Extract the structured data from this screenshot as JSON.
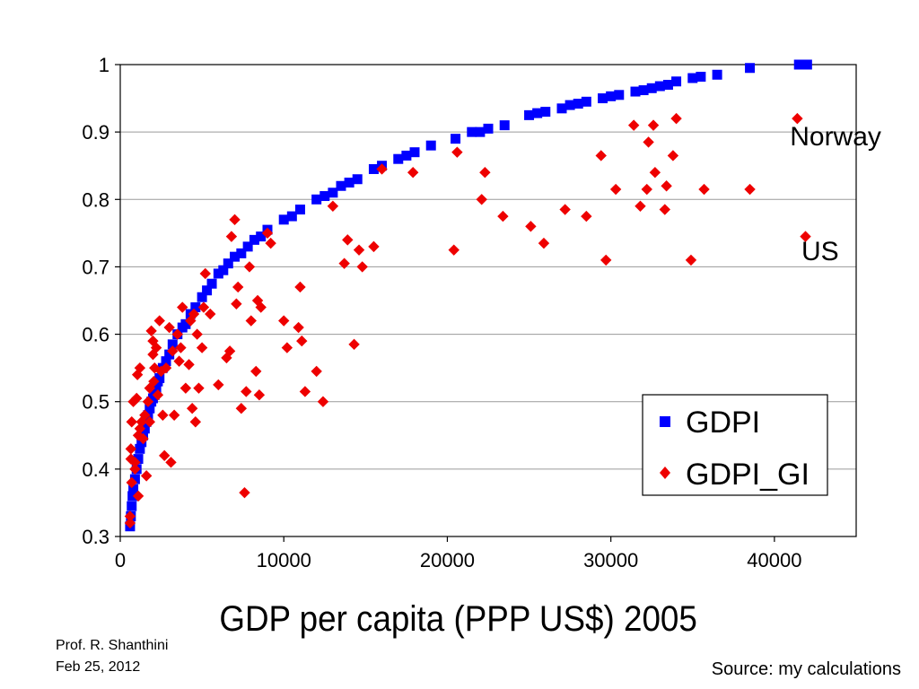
{
  "chart_data": {
    "type": "scatter",
    "title": "",
    "xlabel": "GDP per capita (PPP US$) 2005",
    "ylabel": "",
    "xlim": [
      0,
      45000
    ],
    "ylim": [
      0.3,
      1.0
    ],
    "x_ticks": [
      "0",
      "10000",
      "20000",
      "30000",
      "40000"
    ],
    "y_ticks": [
      "0.3",
      "0.4",
      "0.5",
      "0.6",
      "0.7",
      "0.8",
      "0.9",
      "1"
    ],
    "grid": "horizontal",
    "legend_position": "bottom-right",
    "series": [
      {
        "name": "GDPI",
        "color": "#0000ff",
        "marker": "square",
        "points": [
          [
            600,
            0.315
          ],
          [
            650,
            0.33
          ],
          [
            700,
            0.345
          ],
          [
            750,
            0.36
          ],
          [
            800,
            0.37
          ],
          [
            900,
            0.385
          ],
          [
            1000,
            0.4
          ],
          [
            1100,
            0.415
          ],
          [
            1200,
            0.43
          ],
          [
            1300,
            0.44
          ],
          [
            1400,
            0.45
          ],
          [
            1500,
            0.46
          ],
          [
            1600,
            0.47
          ],
          [
            1700,
            0.48
          ],
          [
            1800,
            0.49
          ],
          [
            1900,
            0.5
          ],
          [
            2000,
            0.505
          ],
          [
            2100,
            0.51
          ],
          [
            2200,
            0.52
          ],
          [
            2300,
            0.53
          ],
          [
            2400,
            0.535
          ],
          [
            2600,
            0.55
          ],
          [
            2800,
            0.56
          ],
          [
            3000,
            0.57
          ],
          [
            3200,
            0.585
          ],
          [
            3500,
            0.6
          ],
          [
            3800,
            0.61
          ],
          [
            4000,
            0.615
          ],
          [
            4300,
            0.63
          ],
          [
            4600,
            0.64
          ],
          [
            5000,
            0.655
          ],
          [
            5300,
            0.665
          ],
          [
            5600,
            0.675
          ],
          [
            6000,
            0.69
          ],
          [
            6300,
            0.695
          ],
          [
            6600,
            0.705
          ],
          [
            7000,
            0.715
          ],
          [
            7400,
            0.72
          ],
          [
            7800,
            0.73
          ],
          [
            8200,
            0.74
          ],
          [
            8600,
            0.745
          ],
          [
            9000,
            0.755
          ],
          [
            10000,
            0.77
          ],
          [
            10500,
            0.775
          ],
          [
            11000,
            0.785
          ],
          [
            12000,
            0.8
          ],
          [
            12500,
            0.805
          ],
          [
            13000,
            0.81
          ],
          [
            13500,
            0.82
          ],
          [
            14000,
            0.825
          ],
          [
            14500,
            0.83
          ],
          [
            15500,
            0.845
          ],
          [
            16000,
            0.85
          ],
          [
            17000,
            0.86
          ],
          [
            17500,
            0.865
          ],
          [
            18000,
            0.87
          ],
          [
            19000,
            0.88
          ],
          [
            20500,
            0.89
          ],
          [
            21500,
            0.9
          ],
          [
            22000,
            0.9
          ],
          [
            22500,
            0.905
          ],
          [
            23500,
            0.91
          ],
          [
            25000,
            0.925
          ],
          [
            25500,
            0.928
          ],
          [
            26000,
            0.93
          ],
          [
            27000,
            0.935
          ],
          [
            27500,
            0.94
          ],
          [
            28000,
            0.942
          ],
          [
            28500,
            0.945
          ],
          [
            29500,
            0.95
          ],
          [
            30000,
            0.953
          ],
          [
            30500,
            0.955
          ],
          [
            31500,
            0.96
          ],
          [
            32000,
            0.962
          ],
          [
            32500,
            0.965
          ],
          [
            33000,
            0.968
          ],
          [
            33500,
            0.97
          ],
          [
            34000,
            0.975
          ],
          [
            35000,
            0.98
          ],
          [
            35500,
            0.982
          ],
          [
            36500,
            0.985
          ],
          [
            38500,
            0.995
          ],
          [
            41500,
            1.0
          ],
          [
            42000,
            1.0
          ]
        ]
      },
      {
        "name": "GDPI_GI",
        "color": "#ee0000",
        "marker": "diamond",
        "points": [
          [
            600,
            0.32
          ],
          [
            600,
            0.33
          ],
          [
            650,
            0.415
          ],
          [
            650,
            0.43
          ],
          [
            700,
            0.38
          ],
          [
            700,
            0.47
          ],
          [
            800,
            0.5
          ],
          [
            900,
            0.4
          ],
          [
            900,
            0.41
          ],
          [
            1000,
            0.505
          ],
          [
            1050,
            0.54
          ],
          [
            1100,
            0.36
          ],
          [
            1100,
            0.45
          ],
          [
            1200,
            0.46
          ],
          [
            1200,
            0.55
          ],
          [
            1300,
            0.47
          ],
          [
            1400,
            0.445
          ],
          [
            1500,
            0.48
          ],
          [
            1600,
            0.39
          ],
          [
            1700,
            0.5
          ],
          [
            1800,
            0.52
          ],
          [
            1800,
            0.47
          ],
          [
            1900,
            0.605
          ],
          [
            2000,
            0.59
          ],
          [
            2000,
            0.57
          ],
          [
            2050,
            0.53
          ],
          [
            2100,
            0.55
          ],
          [
            2200,
            0.58
          ],
          [
            2300,
            0.51
          ],
          [
            2400,
            0.62
          ],
          [
            2500,
            0.545
          ],
          [
            2600,
            0.48
          ],
          [
            2700,
            0.42
          ],
          [
            2800,
            0.55
          ],
          [
            3000,
            0.61
          ],
          [
            3100,
            0.41
          ],
          [
            3200,
            0.575
          ],
          [
            3300,
            0.48
          ],
          [
            3500,
            0.6
          ],
          [
            3600,
            0.56
          ],
          [
            3700,
            0.58
          ],
          [
            3800,
            0.64
          ],
          [
            4000,
            0.52
          ],
          [
            4200,
            0.555
          ],
          [
            4300,
            0.62
          ],
          [
            4400,
            0.49
          ],
          [
            4500,
            0.63
          ],
          [
            4600,
            0.47
          ],
          [
            4700,
            0.6
          ],
          [
            4800,
            0.52
          ],
          [
            5000,
            0.58
          ],
          [
            5100,
            0.64
          ],
          [
            5200,
            0.69
          ],
          [
            5500,
            0.63
          ],
          [
            6000,
            0.525
          ],
          [
            6500,
            0.565
          ],
          [
            6700,
            0.575
          ],
          [
            6800,
            0.745
          ],
          [
            7000,
            0.77
          ],
          [
            7100,
            0.645
          ],
          [
            7200,
            0.67
          ],
          [
            7400,
            0.49
          ],
          [
            7600,
            0.365
          ],
          [
            7700,
            0.515
          ],
          [
            7900,
            0.7
          ],
          [
            8000,
            0.62
          ],
          [
            8300,
            0.545
          ],
          [
            8400,
            0.65
          ],
          [
            8500,
            0.51
          ],
          [
            8600,
            0.64
          ],
          [
            9000,
            0.75
          ],
          [
            9200,
            0.735
          ],
          [
            10000,
            0.62
          ],
          [
            10200,
            0.58
          ],
          [
            10900,
            0.61
          ],
          [
            11000,
            0.67
          ],
          [
            11100,
            0.59
          ],
          [
            11300,
            0.515
          ],
          [
            12000,
            0.545
          ],
          [
            12400,
            0.5
          ],
          [
            13000,
            0.79
          ],
          [
            13700,
            0.705
          ],
          [
            13900,
            0.74
          ],
          [
            14300,
            0.585
          ],
          [
            14600,
            0.725
          ],
          [
            14800,
            0.7
          ],
          [
            15500,
            0.73
          ],
          [
            16000,
            0.845
          ],
          [
            17900,
            0.84
          ],
          [
            20400,
            0.725
          ],
          [
            20600,
            0.87
          ],
          [
            22100,
            0.8
          ],
          [
            22300,
            0.84
          ],
          [
            23400,
            0.775
          ],
          [
            25100,
            0.76
          ],
          [
            25900,
            0.735
          ],
          [
            27200,
            0.785
          ],
          [
            28500,
            0.775
          ],
          [
            29400,
            0.865
          ],
          [
            29700,
            0.71
          ],
          [
            30300,
            0.815
          ],
          [
            31400,
            0.91
          ],
          [
            31800,
            0.79
          ],
          [
            32200,
            0.815
          ],
          [
            32300,
            0.885
          ],
          [
            32600,
            0.91
          ],
          [
            32700,
            0.84
          ],
          [
            33300,
            0.785
          ],
          [
            33400,
            0.82
          ],
          [
            33800,
            0.865
          ],
          [
            34000,
            0.92
          ],
          [
            34900,
            0.71
          ],
          [
            35700,
            0.815
          ],
          [
            38500,
            0.815
          ],
          [
            41400,
            0.92
          ],
          [
            41900,
            0.745
          ]
        ]
      }
    ],
    "annotations": [
      {
        "text": "Norway",
        "x": 41500,
        "y": 0.88
      },
      {
        "text": "US",
        "x": 42200,
        "y": 0.71
      }
    ]
  },
  "footer": {
    "author": "Prof. R. Shanthini",
    "date": "Feb 25, 2012",
    "source": "Source: my calculations"
  }
}
